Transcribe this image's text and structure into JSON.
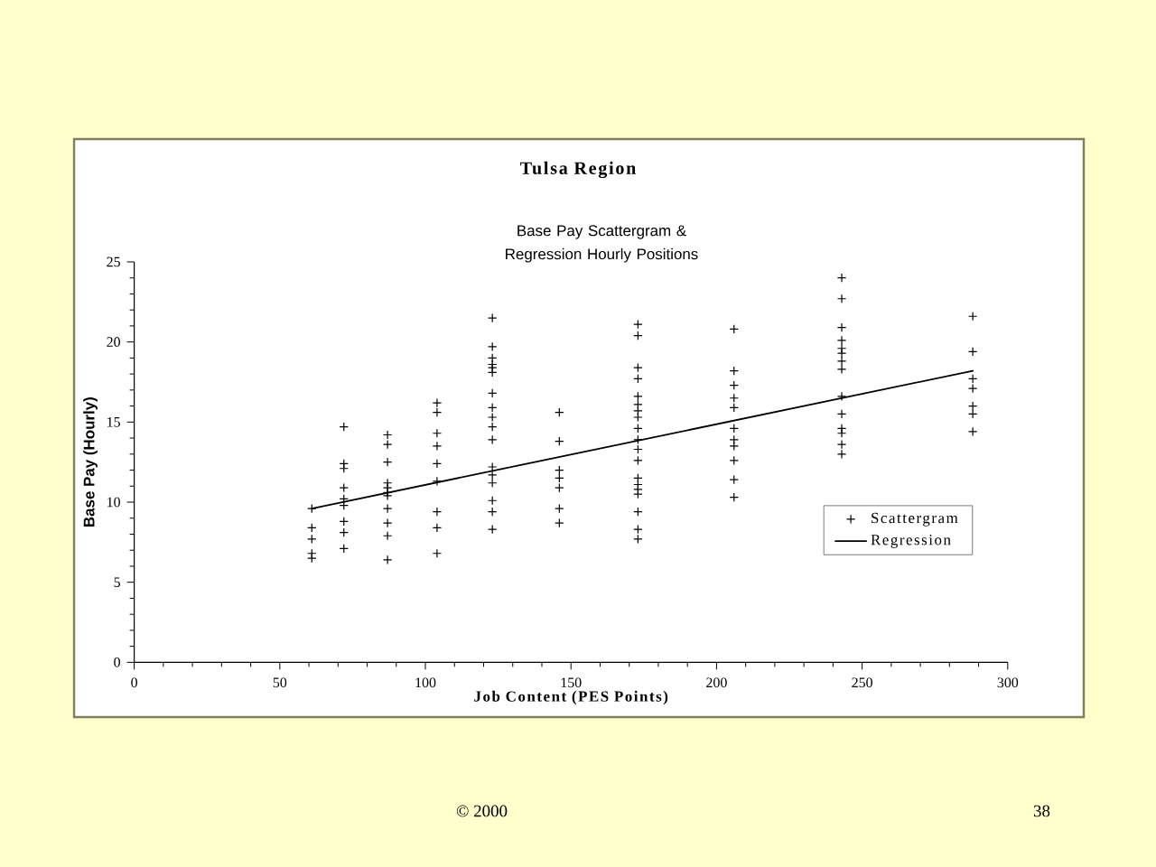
{
  "chart_data": {
    "type": "scatter",
    "title": "Tulsa Region",
    "subtitle": "Base Pay Scattergram & Regression Hourly Positions",
    "xlabel": "Job Content (PES Points)",
    "ylabel": "Base Pay (Hourly)",
    "xlim": [
      0,
      300
    ],
    "xticks": [
      0,
      50,
      100,
      150,
      200,
      250,
      300
    ],
    "ylim": [
      0,
      25
    ],
    "yticks": [
      0,
      5,
      10,
      15,
      20,
      25
    ],
    "legend": "right",
    "series": [
      {
        "name": "Scattergram",
        "color": "#000000",
        "marker": "cross",
        "x": [
          61,
          61,
          61,
          61,
          61,
          72,
          72,
          72,
          72,
          72,
          72,
          72,
          72,
          72,
          87,
          87,
          87,
          87,
          87,
          87,
          87,
          87,
          87,
          87,
          87,
          104,
          104,
          104,
          104,
          104,
          104,
          104,
          104,
          104,
          123,
          123,
          123,
          123,
          123,
          123,
          123,
          123,
          123,
          123,
          123,
          123,
          123,
          123,
          123,
          123,
          123,
          146,
          146,
          146,
          146,
          146,
          146,
          146,
          173,
          173,
          173,
          173,
          173,
          173,
          173,
          173,
          173,
          173,
          173,
          173,
          173,
          173,
          173,
          173,
          173,
          173,
          173,
          206,
          206,
          206,
          206,
          206,
          206,
          206,
          206,
          206,
          206,
          206,
          243,
          243,
          243,
          243,
          243,
          243,
          243,
          243,
          243,
          243,
          243,
          243,
          243,
          243,
          288,
          288,
          288,
          288,
          288,
          288,
          288
        ],
        "values": [
          9.6,
          8.4,
          7.7,
          6.8,
          6.5,
          14.7,
          12.4,
          12.1,
          10.9,
          10.2,
          9.8,
          8.8,
          8.1,
          7.1,
          14.2,
          13.6,
          12.5,
          11.2,
          10.9,
          10.6,
          10.4,
          9.6,
          8.7,
          7.9,
          6.4,
          16.2,
          15.6,
          14.3,
          13.5,
          12.4,
          11.3,
          9.4,
          8.4,
          6.8,
          21.5,
          19.7,
          19.0,
          18.6,
          18.4,
          18.1,
          16.8,
          15.9,
          15.3,
          14.7,
          13.9,
          12.2,
          11.7,
          11.2,
          10.1,
          9.4,
          8.3,
          15.6,
          13.8,
          12.0,
          11.5,
          10.9,
          9.6,
          8.7,
          21.1,
          20.4,
          18.4,
          17.7,
          16.6,
          16.1,
          15.7,
          15.3,
          14.6,
          13.9,
          13.3,
          12.6,
          11.5,
          11.1,
          10.8,
          10.5,
          9.4,
          8.3,
          7.7,
          20.8,
          18.2,
          17.3,
          16.5,
          15.9,
          14.6,
          13.9,
          13.5,
          12.6,
          11.4,
          10.3,
          24.0,
          22.7,
          20.9,
          20.1,
          19.6,
          19.3,
          18.8,
          18.3,
          16.6,
          15.5,
          14.6,
          14.3,
          13.6,
          13.0,
          21.6,
          19.4,
          17.7,
          17.1,
          16.0,
          15.5,
          14.4
        ]
      },
      {
        "name": "Regression",
        "type": "line",
        "color": "#000000",
        "marker": "none",
        "line_style": "solid",
        "x": [
          61,
          288
        ],
        "values": [
          9.6,
          18.2
        ]
      }
    ],
    "annotations": [
      "© 2000",
      "38"
    ]
  }
}
